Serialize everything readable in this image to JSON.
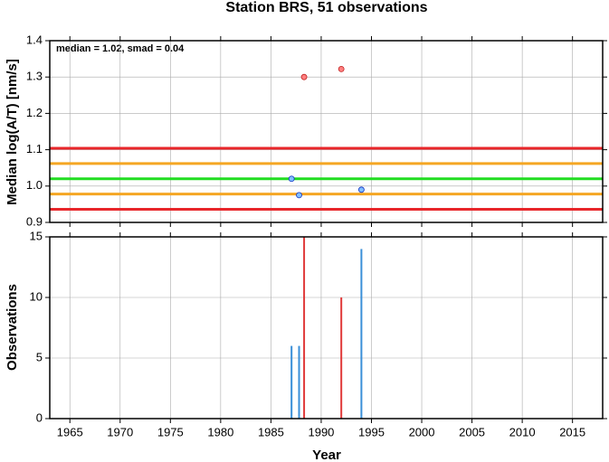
{
  "chart_data": [
    {
      "type": "scatter",
      "title": "Station BRS, 51 observations",
      "ylabel": "Median log(A/T) [nm/s]",
      "annotation": "median = 1.02, smad = 0.04",
      "xlim": [
        1963,
        2018
      ],
      "xticks": [
        1965,
        1970,
        1975,
        1980,
        1985,
        1990,
        1995,
        2000,
        2005,
        2010,
        2015
      ],
      "xtick_labels": false,
      "ylim": [
        0.9,
        1.4
      ],
      "yticks": [
        0.9,
        {
          "value": 1,
          "label": "1.0"
        },
        1.1,
        1.2,
        1.3,
        1.4
      ],
      "grid": true,
      "hlines": [
        {
          "value": 1.104,
          "color": "#e8262a"
        },
        {
          "value": 1.062,
          "color": "#f5a623"
        },
        {
          "value": 1.02,
          "color": "#22dd22"
        },
        {
          "value": 0.978,
          "color": "#f5a623"
        },
        {
          "value": 0.936,
          "color": "#e8262a"
        }
      ],
      "series": [
        {
          "color": "#ff8080",
          "x": [
            1988.3,
            1992.0
          ],
          "values": [
            1.3,
            1.322
          ]
        },
        {
          "color": "#80bfff",
          "x": [
            1987.05,
            1987.8,
            1994.0
          ],
          "values": [
            1.02,
            0.975,
            0.99
          ]
        }
      ]
    },
    {
      "type": "bar",
      "xlabel": "Year",
      "ylabel": "Observations",
      "xlim": [
        1963,
        2018
      ],
      "xticks": [
        1965,
        1970,
        1975,
        1980,
        1985,
        1990,
        1995,
        2000,
        2005,
        2010,
        2015
      ],
      "xtick_labels": true,
      "ylim": [
        0,
        15
      ],
      "yticks": [
        0,
        5,
        10,
        15
      ],
      "grid": true,
      "series": [
        {
          "color": "#e03a3a",
          "x": [
            1988.3,
            1992.0
          ],
          "values": [
            15,
            10
          ]
        },
        {
          "color": "#3a8fd8",
          "x": [
            1987.05,
            1987.8,
            1994.0
          ],
          "values": [
            6,
            6,
            14
          ]
        }
      ]
    }
  ]
}
